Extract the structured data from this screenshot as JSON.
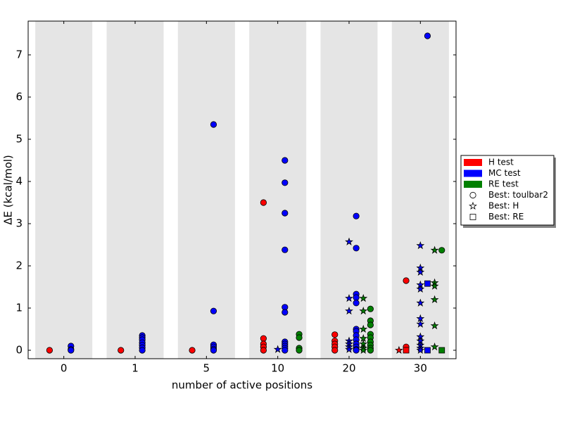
{
  "chart_data": {
    "type": "scatter",
    "xlabel": "number of active positions",
    "ylabel": "ΔE (kcal/mol)",
    "categories": [
      "0",
      "1",
      "5",
      "10",
      "20",
      "30"
    ],
    "ylim": [
      -0.2,
      7.8
    ],
    "yticks": [
      0,
      1,
      2,
      3,
      4,
      5,
      6,
      7
    ],
    "band_color": "#e5e5e5",
    "markers": [
      {
        "name": "Best: toulbar2",
        "shape": "circle"
      },
      {
        "name": "Best: H",
        "shape": "star"
      },
      {
        "name": "Best: RE",
        "shape": "square"
      }
    ],
    "series": [
      {
        "name": "H test",
        "color": "#ff0000",
        "values": [
          [
            [
              0
            ],
            [
              0
            ],
            [
              0
            ],
            [
              3.5,
              0.28,
              0.15,
              0.08,
              0
            ],
            [
              0.37,
              0.22,
              0.15,
              0.08,
              0
            ],
            [
              1.65,
              0.08
            ]
          ],
          [
            [],
            [],
            [],
            [],
            [],
            [
              0
            ]
          ],
          [
            [],
            [],
            [],
            [],
            [],
            [
              0
            ]
          ]
        ]
      },
      {
        "name": "MC test",
        "color": "#0000ff",
        "values": [
          [
            [
              0.1,
              0.02,
              0
            ],
            [
              0.35,
              0.3,
              0.25,
              0.18,
              0.12,
              0.06,
              0
            ],
            [
              5.35,
              0.93,
              0.13,
              0.08,
              0.03,
              0
            ],
            [
              4.5,
              3.97,
              3.25,
              2.38,
              1.02,
              0.9,
              0.2,
              0.15,
              0.1,
              0.05,
              0
            ],
            [
              3.18,
              2.42,
              1.33,
              1.25,
              1.12,
              0.5,
              0.45,
              0.35,
              0.25,
              0.15,
              0.08,
              0.02,
              0
            ],
            [
              7.45
            ]
          ],
          [
            [],
            [],
            [],
            [
              0.02
            ],
            [
              2.57,
              1.23,
              0.93,
              0.22,
              0.15,
              0.08,
              0.02
            ],
            [
              2.48,
              1.95,
              1.85,
              1.55,
              1.45,
              1.12,
              0.75,
              0.62,
              0.32,
              0.22,
              0.12,
              0.05,
              0
            ]
          ],
          [
            [],
            [],
            [],
            [],
            [],
            [
              1.58,
              0
            ]
          ]
        ]
      },
      {
        "name": "RE test",
        "color": "#008000",
        "values": [
          [
            [],
            [],
            [],
            [
              0.38,
              0.3,
              0.05,
              0
            ],
            [
              0.98,
              0.7,
              0.6,
              0.38,
              0.3,
              0.2,
              0.12,
              0.05,
              0
            ],
            [
              2.37
            ]
          ],
          [
            [],
            [],
            [],
            [],
            [
              1.23,
              0.93,
              0.5,
              0.28,
              0.15,
              0.05,
              0
            ],
            [
              2.37,
              1.6,
              1.52,
              1.2,
              0.58,
              0.08
            ]
          ],
          [
            [],
            [],
            [],
            [],
            [],
            [
              0
            ]
          ]
        ]
      }
    ]
  }
}
